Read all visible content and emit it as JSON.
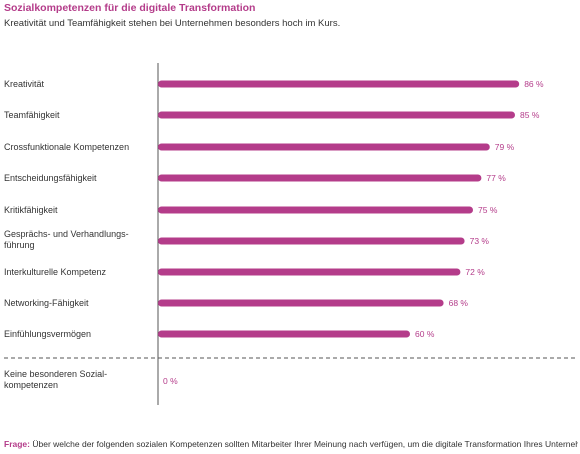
{
  "header": {
    "title": "Sozialkompetenzen für die digitale Transformation",
    "subtitle": "Kreativität und Teamfähigkeit stehen bei Unternehmen besonders hoch im Kurs."
  },
  "footnote": {
    "label": "Frage:",
    "text": "Über welche der folgenden sozialen Kompetenzen sollten Mitarbeiter Ihrer Meinung nach verfügen, um die digitale Transformation Ihres Unterneh-"
  },
  "colors": {
    "accent": "#b43c8a",
    "text": "#333333",
    "axis": "#555555"
  },
  "chart_data": {
    "type": "bar",
    "orientation": "horizontal",
    "title": "Sozialkompetenzen für die digitale Transformation",
    "subtitle": "Kreativität und Teamfähigkeit stehen bei Unternehmen besonders hoch im Kurs.",
    "categories": [
      [
        "Kreativität"
      ],
      [
        "Teamfähigkeit"
      ],
      [
        "Crossfunktionale Kompetenzen"
      ],
      [
        "Entscheidungsfähigkeit"
      ],
      [
        "Kritikfähigkeit"
      ],
      [
        "Gesprächs- und Verhandlungs-",
        "führung"
      ],
      [
        "Interkulturelle Kompetenz"
      ],
      [
        "Networking-Fähigkeit"
      ],
      [
        "Einfühlungsvermögen"
      ],
      [
        "Keine besonderen Sozial-",
        "kompetenzen"
      ]
    ],
    "values": [
      86,
      85,
      79,
      77,
      75,
      73,
      72,
      68,
      60,
      0
    ],
    "value_labels": [
      "86 %",
      "85 %",
      "79 %",
      "77 %",
      "75 %",
      "73 %",
      "72 %",
      "68 %",
      "60 %",
      "0 %"
    ],
    "xlim": [
      0,
      100
    ],
    "grid": false,
    "separator_before_last": true
  }
}
